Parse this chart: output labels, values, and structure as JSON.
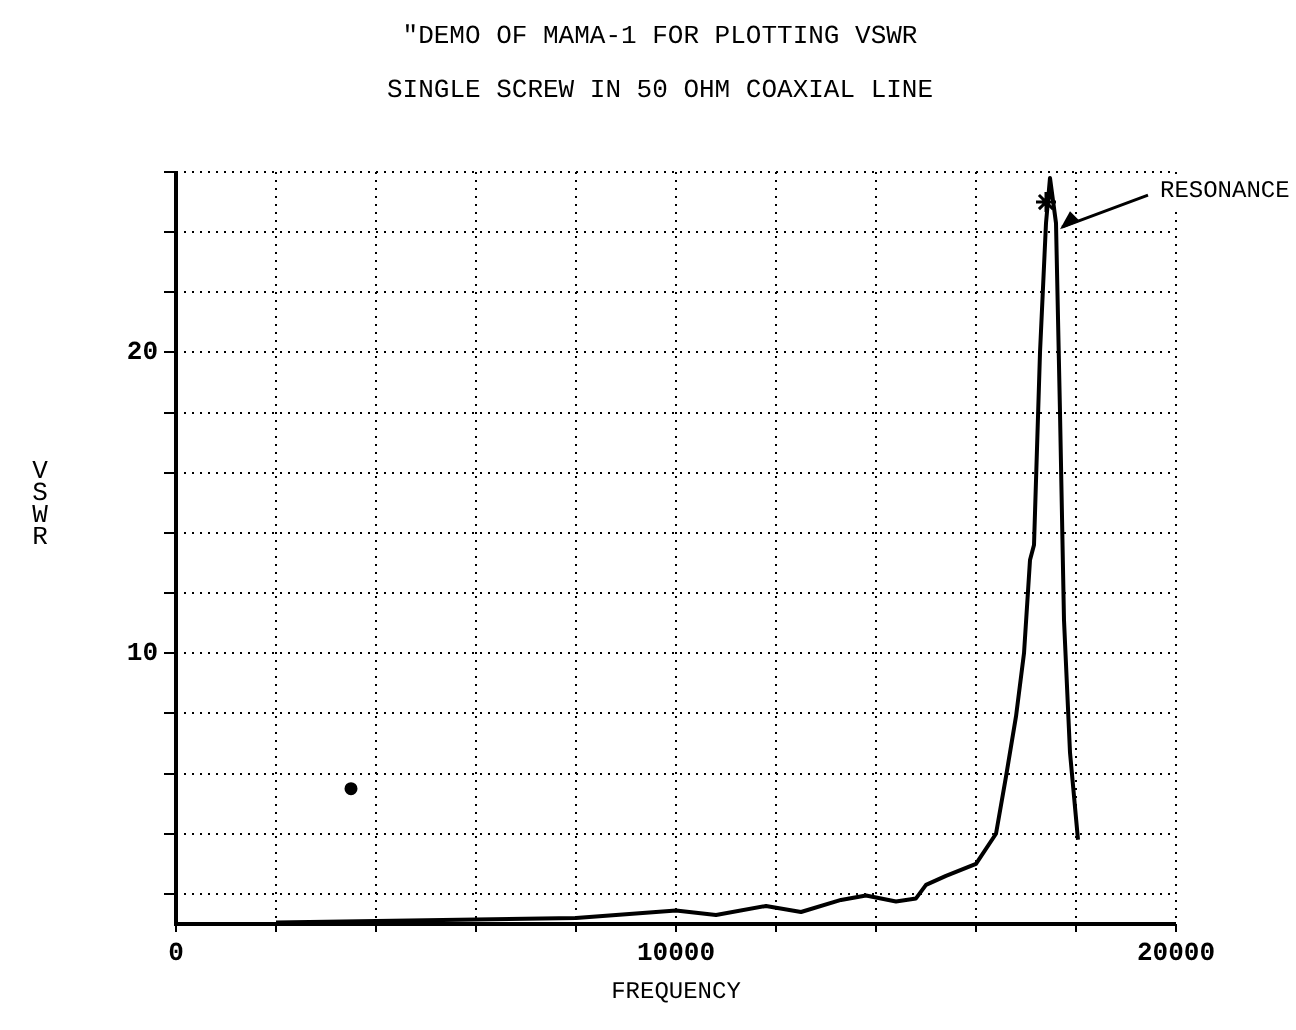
{
  "chart_data": {
    "type": "line",
    "title": "\"DEMO OF MAMA-1 FOR PLOTTING VSWR",
    "subtitle": "SINGLE SCREW IN 50 OHM COAXIAL LINE",
    "xlabel": "FREQUENCY",
    "ylabel": "VSWR",
    "xlim": [
      0,
      20000
    ],
    "ylim": [
      1,
      26
    ],
    "xticks": [
      0,
      {
        "value": 2000,
        "label": null
      },
      {
        "value": 4000,
        "label": null
      },
      {
        "value": 6000,
        "label": null
      },
      {
        "value": 8000,
        "label": null
      },
      10000,
      {
        "value": 12000,
        "label": null
      },
      {
        "value": 14000,
        "label": null
      },
      {
        "value": 16000,
        "label": null
      },
      {
        "value": 18000,
        "label": null
      },
      20000
    ],
    "yticks": [
      {
        "value": 2,
        "label": null
      },
      {
        "value": 4,
        "label": null
      },
      {
        "value": 6,
        "label": null
      },
      {
        "value": 8,
        "label": null
      },
      10,
      {
        "value": 12,
        "label": null
      },
      {
        "value": 14,
        "label": null
      },
      {
        "value": 16,
        "label": null
      },
      {
        "value": 18,
        "label": null
      },
      20,
      {
        "value": 22,
        "label": null
      },
      {
        "value": 24,
        "label": null
      },
      {
        "value": 26,
        "label": null
      }
    ],
    "grid": true,
    "legend": false,
    "series": [
      {
        "color": "#000000",
        "marker": "none",
        "line_style": "solid",
        "x": [
          2000,
          4000,
          6000,
          8000,
          10000,
          10800,
          11800,
          12500,
          13300,
          13800,
          14400,
          14800,
          15000,
          15400,
          16000,
          16400,
          16600,
          16800,
          16960,
          17080,
          17160,
          17280,
          17400,
          17480,
          17600,
          17680,
          17760,
          17880,
          18040
        ],
        "values": [
          1.05,
          1.1,
          1.15,
          1.2,
          1.45,
          1.3,
          1.6,
          1.4,
          1.8,
          1.95,
          1.75,
          1.85,
          2.3,
          2.6,
          3.0,
          4.0,
          5.9,
          7.9,
          10,
          13.1,
          13.6,
          20,
          24.3,
          25.8,
          24.3,
          18,
          11.1,
          6.7,
          3.8
        ]
      },
      {
        "type": "scatter",
        "color": "#000000",
        "marker": "cross",
        "x": [
          17400
        ],
        "values": [
          25
        ]
      },
      {
        "type": "scatter",
        "color": "#000000",
        "marker": "circle",
        "x": [
          3500
        ],
        "values": [
          5.5
        ]
      }
    ],
    "annotations": [
      {
        "text": "RESONANCE",
        "x": 17600,
        "y": 24.3
      }
    ]
  }
}
